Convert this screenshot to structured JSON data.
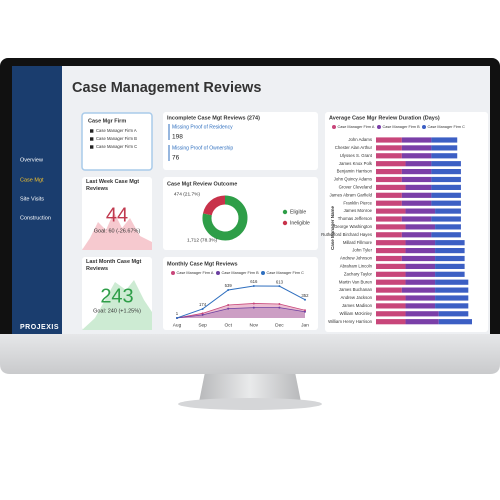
{
  "sidebar": {
    "nav": [
      "Overview",
      "Case Mgt",
      "Site Visits",
      "Construction"
    ],
    "logo": "PROJEXIS"
  },
  "header": {
    "title": "Case Management Reviews"
  },
  "slicer": {
    "title": "Case Mgr Firm",
    "options": [
      "Case Manager Firm A",
      "Case Manager Firm B",
      "Case Manager Firm C"
    ]
  },
  "incomplete": {
    "title": "Incomplete Case Mgt Reviews (274)",
    "items": [
      {
        "label": "Missing Proof of Residency",
        "value": 198
      },
      {
        "label": "Missing Proof of Ownership",
        "value": 76
      }
    ]
  },
  "last_week": {
    "title": "Last Week Case Mgt Reviews",
    "value": 44,
    "goal": "Goal: 60 (-26.67%)"
  },
  "last_month": {
    "title": "Last Month Case Mgt Reviews",
    "value": 243,
    "goal": "Goal: 240 (+1.25%)"
  },
  "outcome": {
    "type": "pie",
    "title": "Case Mgt Review Outcome",
    "categories": [
      "Eligible",
      "Ineligible"
    ],
    "values": [
      1712,
      474
    ],
    "value_labels": [
      "1,712 (78.3%)",
      "474 (21.7%)"
    ],
    "colors": [
      "#2e9e48",
      "#c8324a"
    ]
  },
  "monthly": {
    "type": "line",
    "title": "Monthly Case Mgt Reviews",
    "categories": [
      "Aug",
      "Sep",
      "Oct",
      "Nov",
      "Dec",
      "Jan"
    ],
    "series": [
      {
        "name": "Case Manager Firm A",
        "color": "#c8467a",
        "values": [
          0,
          90,
          250,
          280,
          270,
          150
        ]
      },
      {
        "name": "Case Manager Firm B",
        "color": "#6b3fa0",
        "values": [
          0,
          60,
          180,
          200,
          200,
          120
        ]
      },
      {
        "name": "Case Manager Firm C",
        "color": "#2f6fbf",
        "values": [
          1,
          174,
          539,
          616,
          613,
          352
        ]
      }
    ]
  },
  "duration": {
    "type": "bar",
    "title": "Average Case Mgr Review Duration (Days)",
    "y_label": "Case Manager Name",
    "categories": [
      "John Adams",
      "Chester Alan Arthur",
      "Ulysses S. Grant",
      "James Knox Polk",
      "Benjamin Harrison",
      "John Quincy Adams",
      "Grover Cleveland",
      "James Abram Garfield",
      "Franklin Pierce",
      "James Monroe",
      "Thomas Jefferson",
      "George Washington",
      "Rutherford Birchard Hayes",
      "Millard Fillmore",
      "John Tyler",
      "Andrew Johnson",
      "Abraham Lincoln",
      "Zachary Taylor",
      "Martin Van Buren",
      "James Buchanan",
      "Andrew Jackson",
      "James Madison",
      "William McKinley",
      "William Henry Harrison"
    ],
    "series": [
      {
        "name": "Case Manager Firm A",
        "color": "#c8467a",
        "values": [
          7,
          7,
          7,
          8,
          7,
          7,
          8,
          7,
          7,
          8,
          7,
          8,
          7,
          8,
          8,
          7,
          8,
          8,
          8,
          7,
          8,
          8,
          8,
          8
        ]
      },
      {
        "name": "Case Manager Firm B",
        "color": "#7a3fa8",
        "values": [
          8,
          8,
          8,
          7,
          8,
          8,
          7,
          8,
          8,
          8,
          8,
          8,
          8,
          8,
          8,
          9,
          8,
          8,
          8,
          9,
          8,
          8,
          9,
          9
        ]
      },
      {
        "name": "Case Manager Firm C",
        "color": "#3c5fc4",
        "values": [
          7,
          7,
          7,
          8,
          8,
          8,
          8,
          8,
          8,
          7,
          8,
          7,
          8,
          8,
          8,
          8,
          8,
          8,
          9,
          9,
          9,
          9,
          8,
          9
        ]
      }
    ]
  }
}
